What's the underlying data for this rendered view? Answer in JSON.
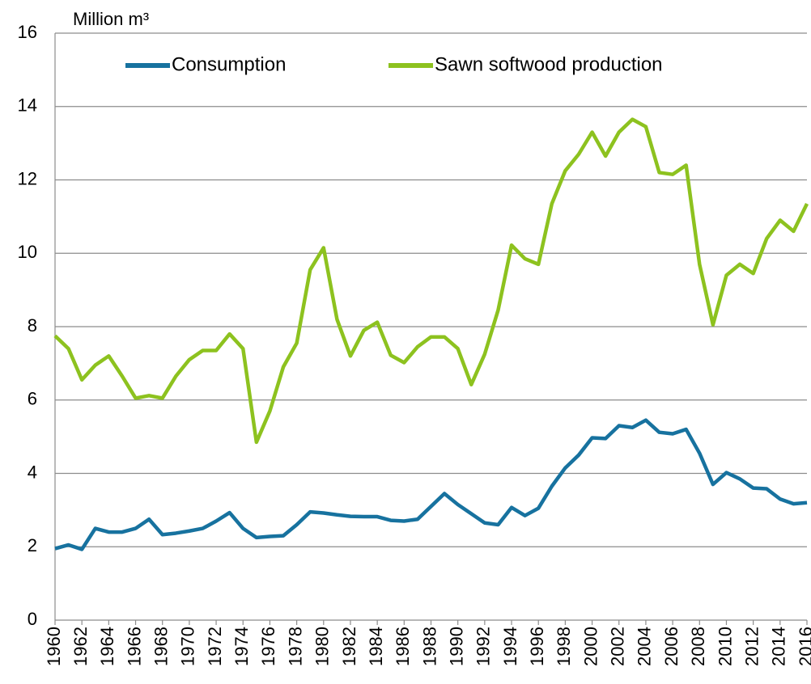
{
  "chart_data": {
    "type": "line",
    "ylabel": "Million m³",
    "x": [
      1960,
      1961,
      1962,
      1963,
      1964,
      1965,
      1966,
      1967,
      1968,
      1969,
      1970,
      1971,
      1972,
      1973,
      1974,
      1975,
      1976,
      1977,
      1978,
      1979,
      1980,
      1981,
      1982,
      1983,
      1984,
      1985,
      1986,
      1987,
      1988,
      1989,
      1990,
      1991,
      1992,
      1993,
      1994,
      1995,
      1996,
      1997,
      1998,
      1999,
      2000,
      2001,
      2002,
      2003,
      2004,
      2005,
      2006,
      2007,
      2008,
      2009,
      2010,
      2011,
      2012,
      2013,
      2014,
      2015,
      2016
    ],
    "series": [
      {
        "name": "Consumption",
        "color": "#17729f",
        "values": [
          1.95,
          2.05,
          1.93,
          2.5,
          2.4,
          2.4,
          2.5,
          2.75,
          2.33,
          2.37,
          2.43,
          2.5,
          2.7,
          2.93,
          2.5,
          2.25,
          2.28,
          2.3,
          2.6,
          2.95,
          2.92,
          2.87,
          2.83,
          2.82,
          2.82,
          2.72,
          2.7,
          2.75,
          3.1,
          3.45,
          3.15,
          2.9,
          2.65,
          2.6,
          3.07,
          2.85,
          3.05,
          3.65,
          4.15,
          4.5,
          4.97,
          4.95,
          5.3,
          5.25,
          5.45,
          5.12,
          5.08,
          5.2,
          4.55,
          3.7,
          4.02,
          3.85,
          3.6,
          3.58,
          3.3,
          3.17,
          3.2
        ]
      },
      {
        "name": "Sawn softwood production",
        "color": "#8dc21f",
        "values": [
          7.75,
          7.4,
          6.55,
          6.95,
          7.2,
          6.65,
          6.05,
          6.12,
          6.05,
          6.65,
          7.1,
          7.35,
          7.35,
          7.8,
          7.4,
          4.85,
          5.7,
          6.9,
          7.55,
          9.55,
          10.15,
          8.2,
          7.2,
          7.9,
          8.12,
          7.22,
          7.02,
          7.45,
          7.72,
          7.72,
          7.4,
          6.42,
          7.25,
          8.45,
          10.22,
          9.85,
          9.7,
          11.35,
          12.25,
          12.7,
          13.3,
          12.65,
          13.3,
          13.65,
          13.45,
          12.2,
          12.15,
          12.4,
          9.7,
          8.05,
          9.4,
          9.7,
          9.45,
          10.4,
          10.9,
          10.6,
          11.35
        ]
      }
    ],
    "xlim": [
      1960,
      2016
    ],
    "xticks": [
      1960,
      1962,
      1964,
      1966,
      1968,
      1970,
      1972,
      1974,
      1976,
      1978,
      1980,
      1982,
      1984,
      1986,
      1988,
      1990,
      1992,
      1994,
      1996,
      1998,
      2000,
      2002,
      2004,
      2006,
      2008,
      2010,
      2012,
      2014,
      2016
    ],
    "ylim": [
      0,
      16
    ],
    "yticks": [
      0,
      2,
      4,
      6,
      8,
      10,
      12,
      14,
      16
    ],
    "grid": true,
    "legend": "top"
  }
}
